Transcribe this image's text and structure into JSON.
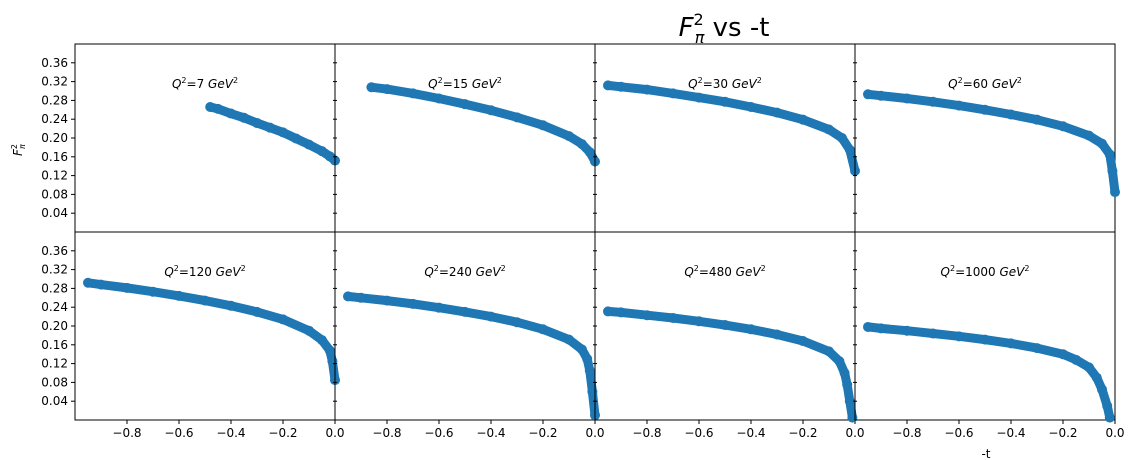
{
  "chart_data": {
    "type": "scatter",
    "title_main": "F",
    "title_sup": "2",
    "title_sub": "π",
    "title_rest": " vs -t",
    "xlabel": "-t",
    "ylabel_main": "F",
    "ylabel_sup": "2",
    "ylabel_sub": "π",
    "xlim": [
      -1.0,
      0.0
    ],
    "ylim": [
      0.0,
      0.4
    ],
    "xticks": [
      -0.8,
      -0.6,
      -0.4,
      -0.2,
      0.0
    ],
    "xtick_labels": [
      "−0.8",
      "−0.6",
      "−0.4",
      "−0.2",
      "0.0"
    ],
    "yticks": [
      0.04,
      0.08,
      0.12,
      0.16,
      0.2,
      0.24,
      0.28,
      0.32,
      0.36
    ],
    "ytick_labels": [
      "0.04",
      "0.08",
      "0.12",
      "0.16",
      "0.20",
      "0.24",
      "0.28",
      "0.32",
      "0.36"
    ],
    "marker_color": "#1f77b4",
    "layout": "2x4 grid, shared axes",
    "panels": [
      {
        "q_value": "7",
        "label_prefix": "Q",
        "label_eq": "=",
        "label_unit": " GeV",
        "series": [
          {
            "x": [
              -0.48,
              -0.45,
              -0.4,
              -0.35,
              -0.3,
              -0.25,
              -0.2,
              -0.15,
              -0.1,
              -0.05,
              -0.02,
              0.0
            ],
            "y": [
              0.266,
              0.262,
              0.252,
              0.243,
              0.232,
              0.222,
              0.212,
              0.199,
              0.186,
              0.172,
              0.161,
              0.152
            ]
          }
        ]
      },
      {
        "q_value": "15",
        "label_prefix": "Q",
        "label_eq": "=",
        "label_unit": " GeV",
        "series": [
          {
            "x": [
              -0.86,
              -0.8,
              -0.7,
              -0.6,
              -0.5,
              -0.4,
              -0.3,
              -0.2,
              -0.1,
              -0.05,
              -0.02,
              0.0
            ],
            "y": [
              0.308,
              0.304,
              0.295,
              0.284,
              0.272,
              0.259,
              0.244,
              0.227,
              0.204,
              0.187,
              0.17,
              0.15
            ]
          }
        ]
      },
      {
        "q_value": "30",
        "label_prefix": "Q",
        "label_eq": "=",
        "label_unit": " GeV",
        "series": [
          {
            "x": [
              -0.95,
              -0.9,
              -0.8,
              -0.7,
              -0.6,
              -0.5,
              -0.4,
              -0.3,
              -0.2,
              -0.1,
              -0.05,
              -0.02,
              0.0
            ],
            "y": [
              0.312,
              0.309,
              0.303,
              0.295,
              0.286,
              0.277,
              0.266,
              0.254,
              0.239,
              0.218,
              0.2,
              0.175,
              0.13
            ]
          }
        ]
      },
      {
        "q_value": "60",
        "label_prefix": "Q",
        "label_eq": "=",
        "label_unit": " GeV",
        "series": [
          {
            "x": [
              -0.95,
              -0.9,
              -0.8,
              -0.7,
              -0.6,
              -0.5,
              -0.4,
              -0.3,
              -0.2,
              -0.1,
              -0.05,
              -0.02,
              -0.01,
              0.0
            ],
            "y": [
              0.293,
              0.29,
              0.284,
              0.277,
              0.269,
              0.26,
              0.25,
              0.239,
              0.225,
              0.205,
              0.188,
              0.165,
              0.13,
              0.085
            ]
          }
        ]
      },
      {
        "q_value": "120",
        "label_prefix": "Q",
        "label_eq": "=",
        "label_unit": " GeV",
        "series": [
          {
            "x": [
              -0.95,
              -0.9,
              -0.8,
              -0.7,
              -0.6,
              -0.5,
              -0.4,
              -0.3,
              -0.2,
              -0.1,
              -0.05,
              -0.02,
              -0.01,
              0.0
            ],
            "y": [
              0.292,
              0.288,
              0.281,
              0.273,
              0.264,
              0.254,
              0.243,
              0.23,
              0.214,
              0.19,
              0.17,
              0.148,
              0.125,
              0.085
            ]
          }
        ]
      },
      {
        "q_value": "240",
        "label_prefix": "Q",
        "label_eq": "=",
        "label_unit": " GeV",
        "series": [
          {
            "x": [
              -0.95,
              -0.9,
              -0.8,
              -0.7,
              -0.6,
              -0.5,
              -0.4,
              -0.3,
              -0.2,
              -0.1,
              -0.05,
              -0.03,
              -0.02,
              -0.01,
              0.0
            ],
            "y": [
              0.263,
              0.26,
              0.254,
              0.247,
              0.239,
              0.23,
              0.22,
              0.208,
              0.193,
              0.171,
              0.15,
              0.13,
              0.105,
              0.06,
              0.01
            ]
          }
        ]
      },
      {
        "q_value": "480",
        "label_prefix": "Q",
        "label_eq": "=",
        "label_unit": " GeV",
        "series": [
          {
            "x": [
              -0.95,
              -0.9,
              -0.8,
              -0.7,
              -0.6,
              -0.5,
              -0.4,
              -0.3,
              -0.2,
              -0.1,
              -0.06,
              -0.04,
              -0.03,
              -0.02,
              -0.01
            ],
            "y": [
              0.231,
              0.229,
              0.223,
              0.217,
              0.21,
              0.202,
              0.193,
              0.182,
              0.168,
              0.146,
              0.125,
              0.1,
              0.075,
              0.04,
              0.005
            ]
          }
        ]
      },
      {
        "q_value": "1000",
        "label_prefix": "Q",
        "label_eq": "=",
        "label_unit": " GeV",
        "series": [
          {
            "x": [
              -0.95,
              -0.9,
              -0.8,
              -0.7,
              -0.6,
              -0.5,
              -0.4,
              -0.3,
              -0.2,
              -0.15,
              -0.1,
              -0.07,
              -0.05,
              -0.03,
              -0.02
            ],
            "y": [
              0.198,
              0.195,
              0.19,
              0.184,
              0.178,
              0.171,
              0.163,
              0.153,
              0.14,
              0.128,
              0.112,
              0.09,
              0.065,
              0.03,
              0.005
            ]
          }
        ]
      }
    ]
  }
}
